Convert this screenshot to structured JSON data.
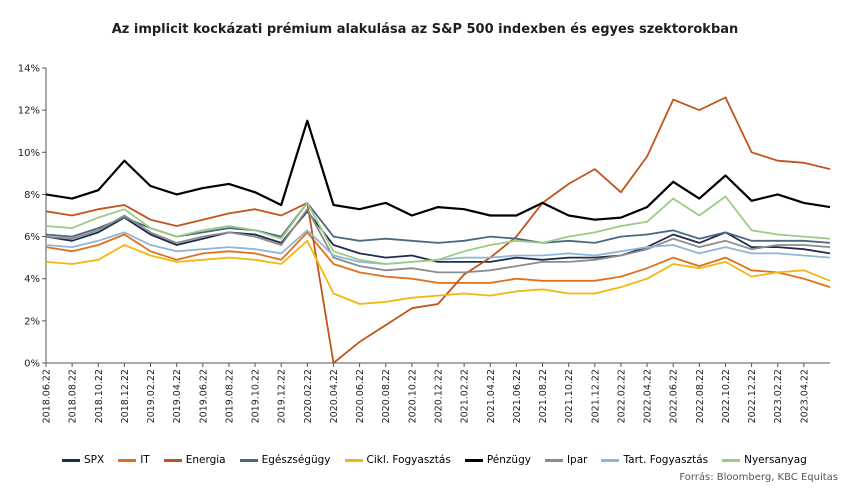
{
  "title": "Az implicit kockázati prémium alakulása az S&P 500 indexben és egyes szektorokban",
  "source": "Forrás: Bloomberg, KBC Equitas",
  "chart_data": {
    "type": "line",
    "title": "Az implicit kockázati prémium alakulása az S&P 500 indexben és egyes szektorokban",
    "xlabel": "",
    "ylabel": "",
    "ylim": [
      0,
      14
    ],
    "yticks": [
      "0%",
      "2%",
      "4%",
      "6%",
      "8%",
      "10%",
      "12%",
      "14%"
    ],
    "x": [
      "2018.06.22",
      "2018.08.22",
      "2018.10.22",
      "2018.12.22",
      "2019.02.22",
      "2019.04.22",
      "2019.06.22",
      "2019.08.22",
      "2019.10.22",
      "2019.12.22",
      "2020.02.22",
      "2020.04.22",
      "2020.06.22",
      "2020.08.22",
      "2020.10.22",
      "2020.12.22",
      "2021.02.22",
      "2021.04.22",
      "2021.06.22",
      "2021.08.22",
      "2021.10.22",
      "2021.12.22",
      "2022.02.22",
      "2022.04.22",
      "2022.06.22",
      "2022.08.22",
      "2022.10.22",
      "2022.12.22",
      "2023.02.22",
      "2023.04.22",
      "2023.06.22"
    ],
    "xtick_labels": [
      "2018.06.22",
      "2018.08.22",
      "2018.10.22",
      "2018.12.22",
      "2019.02.22",
      "2019.04.22",
      "2019.06.22",
      "2019.08.22",
      "2019.10.22",
      "2019.12.22",
      "2020.02.22",
      "2020.04.22",
      "2020.06.22",
      "2020.08.22",
      "2020.10.22",
      "2020.12.22",
      "2021.02.22",
      "2021.04.22",
      "2021.06.22",
      "2021.08.22",
      "2021.10.22",
      "2021.12.22",
      "2022.02.22",
      "2022.04.22",
      "2022.06.22",
      "2022.08.22",
      "2022.10.22",
      "2022.12.22",
      "2023.02.22",
      "2023.04.22"
    ],
    "grid": false,
    "legend_position": "bottom",
    "series": [
      {
        "name": "SPX",
        "color": "#1f2d4d",
        "values": [
          6.0,
          5.8,
          6.2,
          6.9,
          6.1,
          5.6,
          5.9,
          6.2,
          6.1,
          5.7,
          7.2,
          5.6,
          5.2,
          5.0,
          5.1,
          4.8,
          4.8,
          4.8,
          5.0,
          4.9,
          5.0,
          5.0,
          5.1,
          5.5,
          6.1,
          5.7,
          6.2,
          5.5,
          5.5,
          5.4,
          5.2
        ]
      },
      {
        "name": "IT",
        "color": "#e0711c",
        "values": [
          5.5,
          5.3,
          5.6,
          6.1,
          5.3,
          4.9,
          5.2,
          5.3,
          5.2,
          4.9,
          6.2,
          4.7,
          4.3,
          4.1,
          4.0,
          3.8,
          3.8,
          3.8,
          4.0,
          3.9,
          3.9,
          3.9,
          4.1,
          4.5,
          5.0,
          4.6,
          5.0,
          4.4,
          4.3,
          4.0,
          3.6
        ]
      },
      {
        "name": "Energia",
        "color": "#c2541a",
        "values": [
          7.2,
          7.0,
          7.3,
          7.5,
          6.8,
          6.5,
          6.8,
          7.1,
          7.3,
          7.0,
          7.6,
          0.0,
          1.0,
          1.8,
          2.6,
          2.8,
          4.2,
          5.0,
          6.0,
          7.6,
          8.5,
          9.2,
          8.1,
          9.8,
          12.5,
          12.0,
          12.6,
          10.0,
          9.6,
          9.5,
          9.2
        ]
      },
      {
        "name": "Egészségügy",
        "color": "#4a6882",
        "values": [
          6.1,
          6.0,
          6.4,
          6.9,
          6.4,
          6.0,
          6.2,
          6.4,
          6.3,
          6.0,
          7.6,
          6.0,
          5.8,
          5.9,
          5.8,
          5.7,
          5.8,
          6.0,
          5.9,
          5.7,
          5.8,
          5.7,
          6.0,
          6.1,
          6.3,
          5.9,
          6.2,
          5.8,
          5.8,
          5.8,
          5.7
        ]
      },
      {
        "name": "Cikl. Fogyasztás",
        "color": "#f2b70f",
        "values": [
          4.8,
          4.7,
          4.9,
          5.6,
          5.1,
          4.8,
          4.9,
          5.0,
          4.9,
          4.7,
          5.8,
          3.3,
          2.8,
          2.9,
          3.1,
          3.2,
          3.3,
          3.2,
          3.4,
          3.5,
          3.3,
          3.3,
          3.6,
          4.0,
          4.7,
          4.5,
          4.8,
          4.1,
          4.3,
          4.4,
          3.9
        ]
      },
      {
        "name": "Pénzügy",
        "color": "#000000",
        "values": [
          8.0,
          7.8,
          8.2,
          9.6,
          8.4,
          8.0,
          8.3,
          8.5,
          8.1,
          7.5,
          11.5,
          7.5,
          7.3,
          7.6,
          7.0,
          7.4,
          7.3,
          7.0,
          7.0,
          7.6,
          7.0,
          6.8,
          6.9,
          7.4,
          8.6,
          7.8,
          8.9,
          7.7,
          8.0,
          7.6,
          7.4
        ]
      },
      {
        "name": "Ipar",
        "color": "#8c8c8c",
        "values": [
          6.0,
          5.9,
          6.3,
          7.0,
          6.2,
          5.7,
          6.0,
          6.2,
          6.0,
          5.6,
          7.3,
          5.0,
          4.6,
          4.4,
          4.5,
          4.3,
          4.3,
          4.4,
          4.6,
          4.8,
          4.8,
          4.9,
          5.1,
          5.4,
          5.9,
          5.5,
          5.8,
          5.4,
          5.6,
          5.6,
          5.5
        ]
      },
      {
        "name": "Tart. Fogyasztás",
        "color": "#8fb6d8",
        "values": [
          5.6,
          5.5,
          5.8,
          6.2,
          5.6,
          5.3,
          5.4,
          5.5,
          5.4,
          5.2,
          6.3,
          5.1,
          4.8,
          4.7,
          4.8,
          4.9,
          5.0,
          5.0,
          5.1,
          5.1,
          5.2,
          5.1,
          5.3,
          5.5,
          5.6,
          5.2,
          5.5,
          5.2,
          5.2,
          5.1,
          5.0
        ]
      },
      {
        "name": "Nyersanyag",
        "color": "#9ccb84",
        "values": [
          6.5,
          6.4,
          6.9,
          7.3,
          6.4,
          6.0,
          6.3,
          6.5,
          6.3,
          5.9,
          7.6,
          5.3,
          4.9,
          4.7,
          4.8,
          4.9,
          5.3,
          5.6,
          5.8,
          5.7,
          6.0,
          6.2,
          6.5,
          6.7,
          7.8,
          7.0,
          7.9,
          6.3,
          6.1,
          6.0,
          5.9
        ]
      }
    ]
  }
}
